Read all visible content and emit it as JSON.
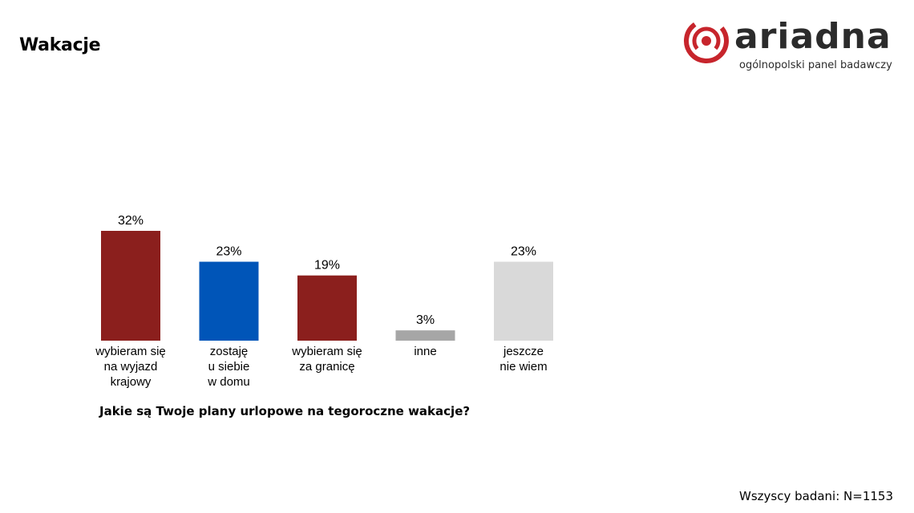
{
  "header": {
    "title": "Wakacje"
  },
  "logo": {
    "wordmark": "ariadna",
    "tagline": "ogólnopolski panel badawczy",
    "mark_icon": "ariadna-swirl-icon",
    "brand_color": "#c7252c"
  },
  "chart_data": {
    "type": "bar",
    "title": "",
    "xlabel": "Jakie są Twoje plany urlopowe na tegoroczne wakacje?",
    "ylabel": "",
    "ylim": [
      0,
      32
    ],
    "grid": false,
    "legend": "none",
    "categories": [
      [
        "wybieram się",
        "na wyjazd",
        "krajowy"
      ],
      [
        "zostaję",
        "u siebie",
        "w domu"
      ],
      [
        "wybieram się",
        "za granicę"
      ],
      [
        "inne"
      ],
      [
        "jeszcze",
        "nie wiem"
      ]
    ],
    "values": [
      32,
      23,
      19,
      3,
      23
    ],
    "value_labels": [
      "32%",
      "23%",
      "19%",
      "3%",
      "23%"
    ],
    "colors": [
      "#8b1f1d",
      "#0055b8",
      "#8b1f1d",
      "#a6a6a6",
      "#d9d9d9"
    ]
  },
  "footer": {
    "note": "Wszyscy badani: N=1153"
  }
}
